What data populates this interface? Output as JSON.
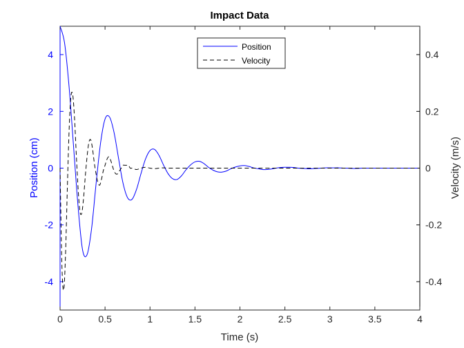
{
  "chart_data": {
    "type": "line",
    "title": "Impact Data",
    "xlabel": "Time (s)",
    "ylabel_left": "Position (cm)",
    "ylabel_right": "Velocity (m/s)",
    "xlim": [
      0,
      4
    ],
    "ylim_left": [
      -5,
      5
    ],
    "ylim_right": [
      -0.5,
      0.5
    ],
    "x_ticks": [
      0,
      0.5,
      1,
      1.5,
      2,
      2.5,
      3,
      3.5,
      4
    ],
    "x_tick_labels": [
      "0",
      "0.5",
      "1",
      "1.5",
      "2",
      "2.5",
      "3",
      "3.5",
      "4"
    ],
    "y_left_ticks": [
      -4,
      -2,
      0,
      2,
      4
    ],
    "y_left_tick_labels": [
      "-4",
      "-2",
      "0",
      "2",
      "4"
    ],
    "y_right_ticks": [
      -0.4,
      -0.2,
      0,
      0.2,
      0.4
    ],
    "y_right_tick_labels": [
      "-0.4",
      "-0.2",
      "0",
      "0.2",
      "0.4"
    ],
    "grid": false,
    "legend_position": "top-center",
    "colors": {
      "position": "#0000ff",
      "velocity": "#000000",
      "left_axis": "#0000ff",
      "right_axis": "#000000"
    },
    "series": [
      {
        "name": "Position",
        "axis": "left",
        "style": "solid",
        "x": [
          0,
          0.05,
          0.1,
          0.15,
          0.2,
          0.25,
          0.3,
          0.35,
          0.4,
          0.45,
          0.5,
          0.55,
          0.6,
          0.65,
          0.7,
          0.75,
          0.8,
          0.85,
          0.9,
          0.95,
          1.0,
          1.05,
          1.1,
          1.15,
          1.2,
          1.25,
          1.3,
          1.35,
          1.4,
          1.45,
          1.5,
          1.55,
          1.6,
          1.65,
          1.7,
          1.75,
          1.8,
          1.85,
          1.9,
          1.95,
          2.0,
          2.05,
          2.1,
          2.15,
          2.2,
          2.25,
          2.3,
          2.35,
          2.4,
          2.45,
          2.5,
          2.55,
          2.6,
          2.65,
          2.7,
          2.75,
          2.8,
          2.85,
          2.9,
          2.95,
          3.0,
          3.05,
          3.1,
          3.15,
          3.2,
          3.25,
          3.3,
          3.35,
          3.4,
          3.45,
          3.5,
          3.55,
          3.6,
          3.65,
          3.7,
          3.75,
          3.8,
          3.85,
          3.9,
          3.95,
          4.0
        ],
        "values": [
          5.0,
          4.41,
          2.87,
          0.76,
          -1.35,
          -2.88,
          -3.05,
          -2.14,
          -0.56,
          0.88,
          1.73,
          1.8,
          1.26,
          0.35,
          -0.53,
          -1.04,
          -1.1,
          -0.75,
          -0.19,
          0.32,
          0.62,
          0.66,
          0.45,
          0.11,
          -0.19,
          -0.37,
          -0.4,
          -0.27,
          -0.06,
          0.11,
          0.22,
          0.24,
          0.16,
          0.03,
          -0.07,
          -0.13,
          -0.14,
          -0.1,
          -0.02,
          0.04,
          0.08,
          0.09,
          0.06,
          0.01,
          -0.02,
          -0.05,
          -0.05,
          -0.03,
          0.0,
          0.02,
          0.03,
          0.03,
          0.02,
          0.0,
          -0.01,
          -0.02,
          -0.02,
          -0.01,
          0.0,
          0.01,
          0.01,
          0.01,
          0.01,
          0.0,
          0.0,
          -0.01,
          -0.01,
          0.0,
          0.0,
          0.0,
          0.0,
          0.0,
          0.0,
          0.0,
          0.0,
          0.0,
          0.0,
          0.0,
          0.0,
          0.0,
          0.0
        ]
      },
      {
        "name": "Velocity",
        "axis": "right",
        "style": "dashed",
        "x": [
          0,
          0.02,
          0.04,
          0.06,
          0.08,
          0.1,
          0.12,
          0.14,
          0.16,
          0.18,
          0.2,
          0.22,
          0.24,
          0.26,
          0.28,
          0.3,
          0.32,
          0.34,
          0.36,
          0.38,
          0.4,
          0.42,
          0.44,
          0.46,
          0.48,
          0.5,
          0.52,
          0.54,
          0.56,
          0.58,
          0.6,
          0.62,
          0.64,
          0.66,
          0.68,
          0.7,
          0.72,
          0.74,
          0.76,
          0.78,
          0.8,
          0.85,
          0.9,
          0.95,
          1.0,
          1.05,
          1.1,
          1.15,
          1.2,
          1.3,
          1.4,
          1.5,
          1.6,
          1.8,
          2.0,
          2.5,
          3.0,
          3.5,
          4.0
        ],
        "values": [
          0.0,
          -0.34,
          -0.43,
          -0.31,
          -0.08,
          0.13,
          0.25,
          0.26,
          0.18,
          0.05,
          -0.07,
          -0.15,
          -0.16,
          -0.11,
          -0.03,
          0.04,
          0.09,
          0.1,
          0.07,
          0.02,
          -0.02,
          -0.05,
          -0.06,
          -0.04,
          -0.01,
          0.01,
          0.03,
          0.04,
          0.03,
          0.01,
          -0.01,
          -0.02,
          -0.02,
          -0.01,
          0.0,
          0.01,
          0.01,
          0.01,
          0.01,
          0.0,
          0.0,
          -0.005,
          0.0,
          0.003,
          0.0,
          -0.002,
          0.0,
          0.001,
          0.0,
          0.0,
          0.0,
          0.0,
          0.0,
          0.0,
          0.0,
          0.0,
          0.0,
          0.0,
          0.0
        ]
      }
    ]
  }
}
